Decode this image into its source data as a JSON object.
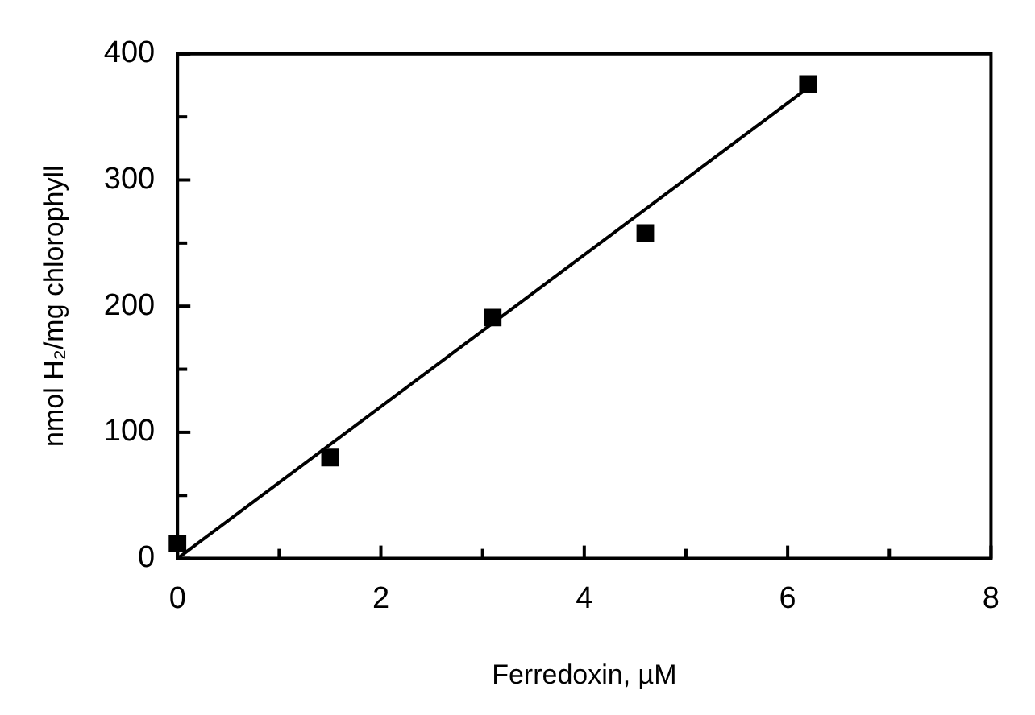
{
  "chart_data": {
    "type": "scatter",
    "xlabel": "Ferredoxin, µM",
    "ylabel": "nmol H₂/mg chlorophyll",
    "xlim": [
      0,
      8
    ],
    "xticks": [
      0,
      {
        "value": 1,
        "label": null
      },
      2,
      {
        "value": 3,
        "label": null
      },
      4,
      {
        "value": 5,
        "label": null
      },
      6,
      {
        "value": 7,
        "label": null
      },
      8
    ],
    "ylim": [
      0,
      400
    ],
    "yticks": [
      0,
      {
        "value": 50,
        "label": null
      },
      100,
      {
        "value": 150,
        "label": null
      },
      200,
      {
        "value": 250,
        "label": null
      },
      300,
      {
        "value": 350,
        "label": null
      },
      400
    ],
    "grid": false,
    "legend": false,
    "marker": "square",
    "series": [
      {
        "color": "#000000",
        "x": [
          0,
          1.5,
          3.1,
          4.6,
          6.2
        ],
        "values": [
          12,
          80,
          191,
          258,
          376
        ]
      },
      {
        "type": "line",
        "color": "#000000",
        "marker": "none",
        "x": [
          0,
          6.2
        ],
        "values": [
          0,
          373
        ]
      }
    ]
  }
}
